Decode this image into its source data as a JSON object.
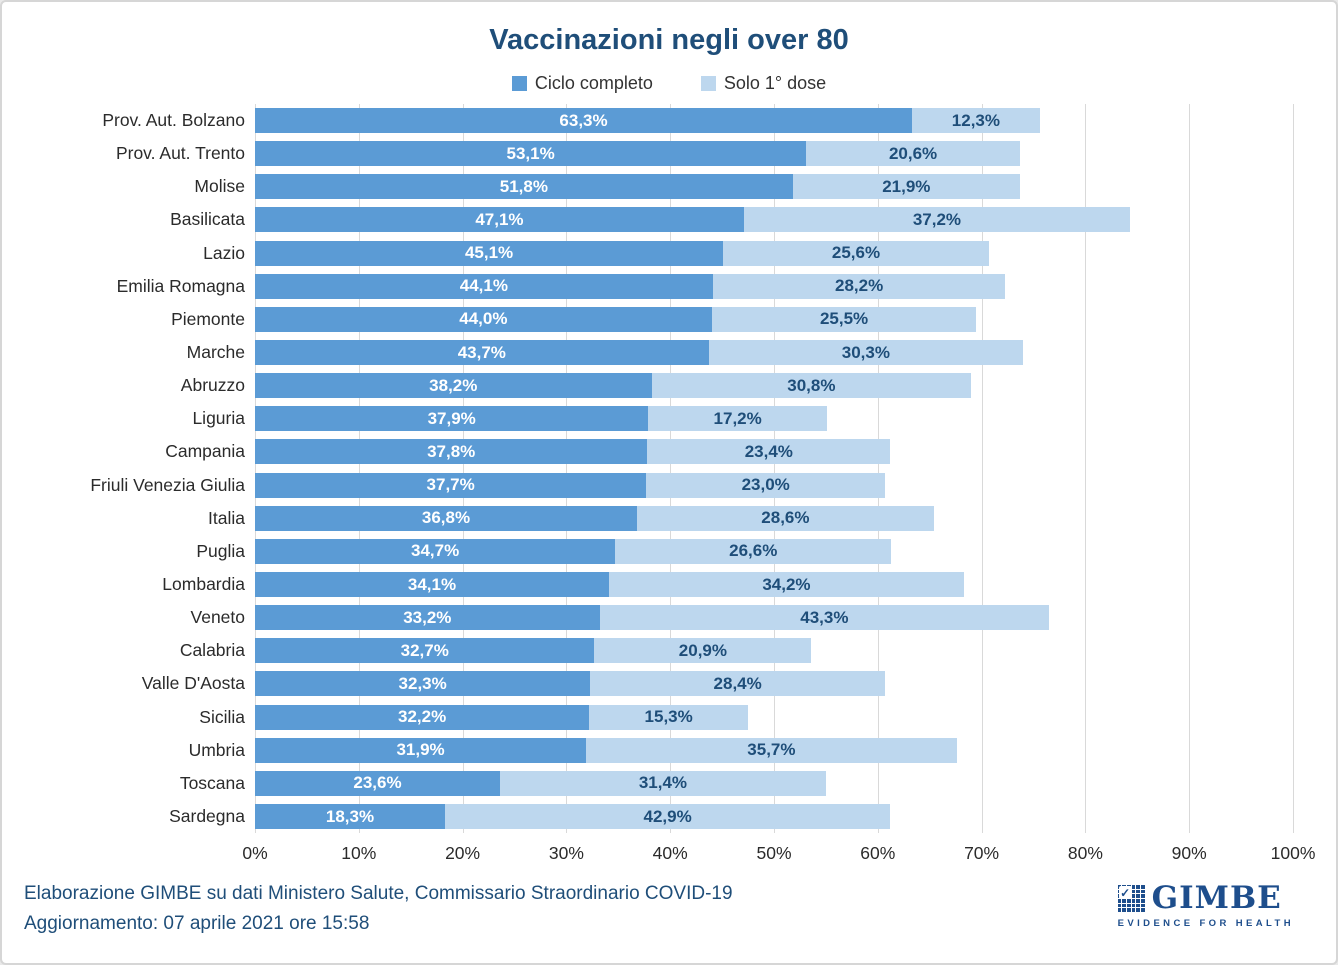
{
  "title": "Vaccinazioni negli over 80",
  "legend": [
    {
      "label": "Ciclo completo",
      "color": "#5B9BD5"
    },
    {
      "label": "Solo 1° dose",
      "color": "#BDD7EE"
    }
  ],
  "colors": {
    "series1": "#5B9BD5",
    "series2": "#BDD7EE",
    "title": "#1F4E79",
    "gridline": "#D9D9D9",
    "label_on_dark": "#FFFFFF",
    "label_on_light": "#1F4E79",
    "logo_blue": "#1e4e8c"
  },
  "chart_data": {
    "type": "bar",
    "orientation": "horizontal",
    "stacked": true,
    "title": "Vaccinazioni negli over 80",
    "xlabel": "",
    "ylabel": "",
    "xlim": [
      0,
      100
    ],
    "grid": true,
    "legend_position": "top",
    "x_tick_values": [
      0,
      10,
      20,
      30,
      40,
      50,
      60,
      70,
      80,
      90,
      100
    ],
    "x_ticks": [
      "0%",
      "10%",
      "20%",
      "30%",
      "40%",
      "50%",
      "60%",
      "70%",
      "80%",
      "90%",
      "100%"
    ],
    "categories": [
      "Prov. Aut. Bolzano",
      "Prov. Aut. Trento",
      "Molise",
      "Basilicata",
      "Lazio",
      "Emilia Romagna",
      "Piemonte",
      "Marche",
      "Abruzzo",
      "Liguria",
      "Campania",
      "Friuli Venezia Giulia",
      "Italia",
      "Puglia",
      "Lombardia",
      "Veneto",
      "Calabria",
      "Valle D'Aosta",
      "Sicilia",
      "Umbria",
      "Toscana",
      "Sardegna"
    ],
    "series": [
      {
        "name": "Ciclo completo",
        "values": [
          63.3,
          53.1,
          51.8,
          47.1,
          45.1,
          44.1,
          44.0,
          43.7,
          38.2,
          37.9,
          37.8,
          37.7,
          36.8,
          34.7,
          34.1,
          33.2,
          32.7,
          32.3,
          32.2,
          31.9,
          23.6,
          18.3
        ],
        "labels": [
          "63,3%",
          "53,1%",
          "51,8%",
          "47,1%",
          "45,1%",
          "44,1%",
          "44,0%",
          "43,7%",
          "38,2%",
          "37,9%",
          "37,8%",
          "37,7%",
          "36,8%",
          "34,7%",
          "34,1%",
          "33,2%",
          "32,7%",
          "32,3%",
          "32,2%",
          "31,9%",
          "23,6%",
          "18,3%"
        ]
      },
      {
        "name": "Solo 1° dose",
        "values": [
          12.3,
          20.6,
          21.9,
          37.2,
          25.6,
          28.2,
          25.5,
          30.3,
          30.8,
          17.2,
          23.4,
          23.0,
          28.6,
          26.6,
          34.2,
          43.3,
          20.9,
          28.4,
          15.3,
          35.7,
          31.4,
          42.9
        ],
        "labels": [
          "12,3%",
          "20,6%",
          "21,9%",
          "37,2%",
          "25,6%",
          "28,2%",
          "25,5%",
          "30,3%",
          "30,8%",
          "17,2%",
          "23,4%",
          "23,0%",
          "28,6%",
          "26,6%",
          "34,2%",
          "43,3%",
          "20,9%",
          "28,4%",
          "15,3%",
          "35,7%",
          "31,4%",
          "42,9%"
        ]
      }
    ]
  },
  "footer": {
    "line1": "Elaborazione GIMBE su dati Ministero Salute, Commissario Straordinario COVID-19",
    "line2": "Aggiornamento: 07 aprile 2021 ore 15:58"
  },
  "logo": {
    "name": "GIMBE",
    "tagline": "EVIDENCE FOR HEALTH"
  }
}
